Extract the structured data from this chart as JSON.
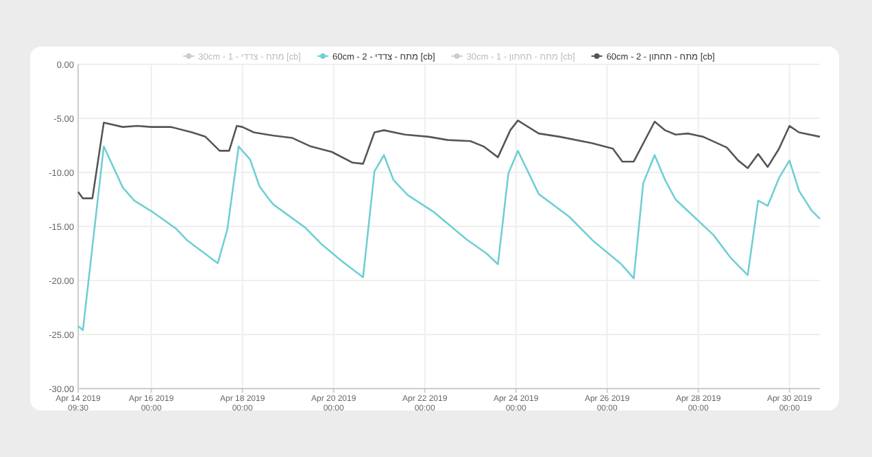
{
  "chart_data": {
    "type": "line",
    "xlim": [
      "2019-04-14T09:30",
      "2019-04-30T16:00"
    ],
    "xticks": [
      {
        "value": "2019-04-14T09:30",
        "label": "Apr 14 2019\n09:30"
      },
      {
        "value": "2019-04-16T00:00",
        "label": "Apr 16 2019\n00:00"
      },
      {
        "value": "2019-04-18T00:00",
        "label": "Apr 18 2019\n00:00"
      },
      {
        "value": "2019-04-20T00:00",
        "label": "Apr 20 2019\n00:00"
      },
      {
        "value": "2019-04-22T00:00",
        "label": "Apr 22 2019\n00:00"
      },
      {
        "value": "2019-04-24T00:00",
        "label": "Apr 24 2019\n00:00"
      },
      {
        "value": "2019-04-26T00:00",
        "label": "Apr 26 2019\n00:00"
      },
      {
        "value": "2019-04-28T00:00",
        "label": "Apr 28 2019\n00:00"
      },
      {
        "value": "2019-04-30T00:00",
        "label": "Apr 30 2019\n00:00"
      }
    ],
    "ylim": [
      -30,
      0
    ],
    "yticks": [
      {
        "value": 0,
        "label": "0.00"
      },
      {
        "value": -5,
        "label": "-5.00"
      },
      {
        "value": -10,
        "label": "-10.00"
      },
      {
        "value": -15,
        "label": "-15.00"
      },
      {
        "value": -20,
        "label": "-20.00"
      },
      {
        "value": -25,
        "label": "-25.00"
      },
      {
        "value": -30,
        "label": "-30.00"
      }
    ],
    "grid": true,
    "legend": "top",
    "marker": "none",
    "line_style": "solid",
    "series": [
      {
        "name": "30cm - 1 - מתח - צדדי [cb]",
        "color": "#cccccc"
      },
      {
        "name": "60cm - 2 - מתח - צדדי [cb]",
        "color": "#6fcfd4",
        "x": [
          "2019-04-14T09:30",
          "2019-04-14T12:00",
          "2019-04-14T23:00",
          "2019-04-15T09:00",
          "2019-04-15T15:00",
          "2019-04-16T01:00",
          "2019-04-16T13:00",
          "2019-04-16T19:00",
          "2019-04-17T11:00",
          "2019-04-17T16:00",
          "2019-04-17T22:00",
          "2019-04-18T04:00",
          "2019-04-18T09:00",
          "2019-04-18T14:30",
          "2019-04-18T16:30",
          "2019-04-19T09:00",
          "2019-04-19T18:00",
          "2019-04-20T05:00",
          "2019-04-20T15:30",
          "2019-04-20T21:30",
          "2019-04-21T02:30",
          "2019-04-21T07:30",
          "2019-04-21T15:00",
          "2019-04-22T05:00",
          "2019-04-22T22:00",
          "2019-04-23T08:30",
          "2019-04-23T14:30",
          "2019-04-23T20:00",
          "2019-04-24T01:00",
          "2019-04-24T12:00",
          "2019-04-25T04:00",
          "2019-04-25T17:00",
          "2019-04-26T07:30",
          "2019-04-26T14:00",
          "2019-04-26T19:00",
          "2019-04-27T01:00",
          "2019-04-27T06:30",
          "2019-04-27T12:00",
          "2019-04-28T08:00",
          "2019-04-28T17:00",
          "2019-04-29T02:00",
          "2019-04-29T07:30",
          "2019-04-29T12:30",
          "2019-04-29T18:30",
          "2019-04-30T00:00",
          "2019-04-30T05:00",
          "2019-04-30T11:30",
          "2019-04-30T16:00"
        ],
        "values": [
          -24.2,
          -24.6,
          -7.6,
          -11.4,
          -12.6,
          -13.7,
          -15.2,
          -16.3,
          -18.4,
          -15.3,
          -7.6,
          -8.8,
          -11.3,
          -12.6,
          -13.0,
          -15.1,
          -16.7,
          -18.3,
          -19.7,
          -9.9,
          -8.4,
          -10.7,
          -12.1,
          -13.7,
          -16.2,
          -17.5,
          -18.5,
          -10.1,
          -8.0,
          -12.0,
          -14.1,
          -16.4,
          -18.5,
          -19.8,
          -11.0,
          -8.4,
          -10.7,
          -12.5,
          -15.8,
          -17.9,
          -19.5,
          -12.6,
          -13.1,
          -10.5,
          -8.9,
          -11.7,
          -13.5,
          -14.3
        ]
      },
      {
        "name": "30cm - 1 - מתח - תחתון [cb]",
        "color": "#cccccc"
      },
      {
        "name": "60cm - 2 - מתח - תחתון [cb]",
        "color": "#555555",
        "x": [
          "2019-04-14T09:30",
          "2019-04-14T12:00",
          "2019-04-14T17:00",
          "2019-04-14T23:00",
          "2019-04-15T09:00",
          "2019-04-15T16:30",
          "2019-04-16T00:00",
          "2019-04-16T10:30",
          "2019-04-16T21:30",
          "2019-04-17T04:30",
          "2019-04-17T12:00",
          "2019-04-17T17:00",
          "2019-04-17T21:00",
          "2019-04-18T00:00",
          "2019-04-18T06:00",
          "2019-04-18T13:00",
          "2019-04-18T16:30",
          "2019-04-19T02:00",
          "2019-04-19T12:00",
          "2019-04-19T23:00",
          "2019-04-20T10:00",
          "2019-04-20T15:30",
          "2019-04-20T21:30",
          "2019-04-21T02:30",
          "2019-04-21T13:30",
          "2019-04-22T02:00",
          "2019-04-22T12:00",
          "2019-04-23T00:00",
          "2019-04-23T07:00",
          "2019-04-23T14:30",
          "2019-04-23T21:00",
          "2019-04-24T01:00",
          "2019-04-24T12:00",
          "2019-04-24T23:00",
          "2019-04-25T16:00",
          "2019-04-26T03:00",
          "2019-04-26T08:00",
          "2019-04-26T14:00",
          "2019-04-27T01:00",
          "2019-04-27T06:30",
          "2019-04-27T12:00",
          "2019-04-27T18:30",
          "2019-04-28T02:30",
          "2019-04-28T15:00",
          "2019-04-28T21:00",
          "2019-04-29T02:00",
          "2019-04-29T07:30",
          "2019-04-29T12:30",
          "2019-04-29T18:30",
          "2019-04-30T00:00",
          "2019-04-30T05:00",
          "2019-04-30T16:00"
        ],
        "values": [
          -11.8,
          -12.4,
          -12.4,
          -5.4,
          -5.8,
          -5.7,
          -5.8,
          -5.8,
          -6.3,
          -6.7,
          -8.0,
          -8.0,
          -5.7,
          -5.8,
          -6.3,
          -6.5,
          -6.6,
          -6.8,
          -7.6,
          -8.1,
          -9.1,
          -9.2,
          -6.3,
          -6.1,
          -6.5,
          -6.7,
          -7.0,
          -7.1,
          -7.6,
          -8.6,
          -6.1,
          -5.2,
          -6.4,
          -6.7,
          -7.3,
          -7.8,
          -9.0,
          -9.0,
          -5.3,
          -6.1,
          -6.5,
          -6.4,
          -6.7,
          -7.7,
          -8.9,
          -9.6,
          -8.3,
          -9.5,
          -7.8,
          -5.7,
          -6.3,
          -6.7
        ]
      }
    ]
  }
}
